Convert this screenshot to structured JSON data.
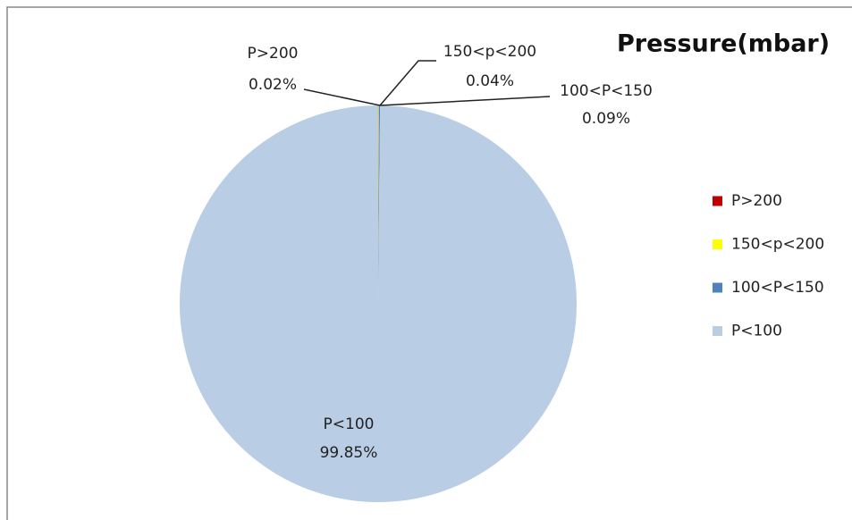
{
  "chart_data": {
    "type": "pie",
    "title": "Pressure(mbar)",
    "categories": [
      "P>200",
      "150<p<200",
      "100<P<150",
      "P<100"
    ],
    "values": [
      0.02,
      0.04,
      0.09,
      99.85
    ],
    "value_labels": [
      "0.02%",
      "0.04%",
      "0.09%",
      "99.85%"
    ],
    "colors": [
      "#c00000",
      "#ffff00",
      "#4f81bd",
      "#b9cde5"
    ],
    "legend": "right"
  }
}
